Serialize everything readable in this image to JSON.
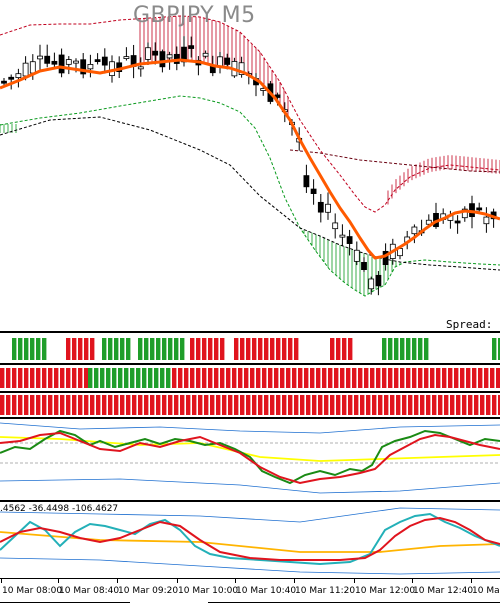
{
  "chart": {
    "title": "GBPJPY M5",
    "spread_label": "Spread:",
    "indicator_values": ".4562 -36.4498 -106.4627",
    "time_labels": [
      "10 Mar 08:00",
      "10 Mar 08:40",
      "10 Mar 09:20",
      "10 Mar 10:00",
      "10 Mar 10:40",
      "10 Mar 11:20",
      "10 Mar 12:00",
      "10 Mar 12:40",
      "10 Mar"
    ]
  },
  "colors": {
    "ma_main": "#ff5a00",
    "upper_band": "#c0001e",
    "lower_band": "#0a9a1e",
    "dashed_mid": "#000000",
    "bar_green": "#1f9e2a",
    "bar_red": "#e0141e",
    "osc_green": "#1a8a14",
    "osc_red": "#e0141e",
    "osc_yellow": "#ffff00",
    "osc_cyan": "#23b0b8",
    "osc_orange": "#ffb400",
    "band_blue": "#1e6fd0"
  },
  "chart_data": {
    "type": "candlestick",
    "title": "GBPJPY M5",
    "x_tick_labels": [
      "10 Mar 08:00",
      "10 Mar 08:40",
      "10 Mar 09:20",
      "10 Mar 10:00",
      "10 Mar 10:40",
      "10 Mar 11:20",
      "10 Mar 12:00",
      "10 Mar 12:40",
      "10 Mar"
    ],
    "signal_rows": [
      {
        "row": 1,
        "pattern": [
          "green",
          "green",
          "green",
          "green",
          "gap",
          "red",
          "red",
          "red",
          "red",
          "red",
          "gap",
          "green",
          "green",
          "green",
          "green",
          "gap",
          "green",
          "green",
          "green",
          "green",
          "green",
          "green",
          "green",
          "green",
          "green",
          "red",
          "red",
          "red",
          "red",
          "red",
          "red",
          "gap",
          "red",
          "red",
          "red",
          "red",
          "red",
          "red",
          "red",
          "red",
          "red",
          "red",
          "red",
          "gap",
          "red",
          "red",
          "red",
          "gap",
          "green",
          "green",
          "green",
          "green",
          "green",
          "green",
          "gap",
          "green"
        ]
      },
      {
        "row": 2,
        "pattern": "red then green then red"
      },
      {
        "row": 3,
        "pattern": "red"
      }
    ]
  }
}
